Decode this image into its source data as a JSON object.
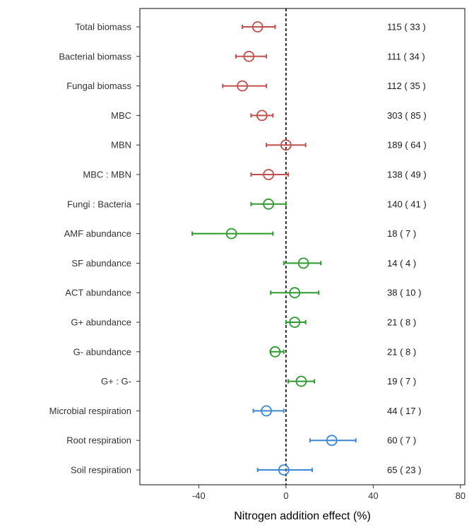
{
  "chart_data": {
    "type": "forest",
    "xlabel": "Nitrogen addition effect (%)",
    "xlim": [
      -67,
      82
    ],
    "xticks": [
      -40,
      0,
      40,
      80
    ],
    "reference_line": 0,
    "grid": false,
    "colors": {
      "red": "#c0504d",
      "green": "#2e9a2e",
      "blue": "#3c86d6"
    },
    "rows": [
      {
        "label": "Total biomass",
        "estimate": -13,
        "ci": [
          -20,
          -5
        ],
        "n_label": "115 ( 33 )",
        "color": "red"
      },
      {
        "label": "Bacterial biomass",
        "estimate": -17,
        "ci": [
          -23,
          -9
        ],
        "n_label": "111 ( 34 )",
        "color": "red"
      },
      {
        "label": "Fungal biomass",
        "estimate": -20,
        "ci": [
          -29,
          -9
        ],
        "n_label": "112 ( 35 )",
        "color": "red"
      },
      {
        "label": "MBC",
        "estimate": -11,
        "ci": [
          -16,
          -6
        ],
        "n_label": "303 ( 85 )",
        "color": "red"
      },
      {
        "label": "MBN",
        "estimate": 0,
        "ci": [
          -9,
          9
        ],
        "n_label": "189 ( 64 )",
        "color": "red"
      },
      {
        "label": "MBC : MBN",
        "estimate": -8,
        "ci": [
          -16,
          1
        ],
        "n_label": "138 ( 49 )",
        "color": "red"
      },
      {
        "label": "Fungi : Bacteria",
        "estimate": -8,
        "ci": [
          -16,
          0
        ],
        "n_label": "140 ( 41 )",
        "color": "green"
      },
      {
        "label": "AMF abundance",
        "estimate": -25,
        "ci": [
          -43,
          -6
        ],
        "n_label": "18 ( 7 )",
        "color": "green"
      },
      {
        "label": "SF abundance",
        "estimate": 8,
        "ci": [
          -1,
          16
        ],
        "n_label": "14 ( 4 )",
        "color": "green"
      },
      {
        "label": "ACT abundance",
        "estimate": 4,
        "ci": [
          -7,
          15
        ],
        "n_label": "38 ( 10 )",
        "color": "green"
      },
      {
        "label": "G+ abundance",
        "estimate": 4,
        "ci": [
          0,
          9
        ],
        "n_label": "21 ( 8 )",
        "color": "green"
      },
      {
        "label": "G- abundance",
        "estimate": -5,
        "ci": [
          -7,
          -1
        ],
        "n_label": "21 ( 8 )",
        "color": "green"
      },
      {
        "label": "G+ : G-",
        "estimate": 7,
        "ci": [
          1,
          13
        ],
        "n_label": "19 ( 7 )",
        "color": "green"
      },
      {
        "label": "Microbial respiration",
        "estimate": -9,
        "ci": [
          -15,
          -1
        ],
        "n_label": "44 ( 17 )",
        "color": "blue"
      },
      {
        "label": "Root respiration",
        "estimate": 21,
        "ci": [
          11,
          32
        ],
        "n_label": "60 ( 7 )",
        "color": "blue"
      },
      {
        "label": "Soil respiration",
        "estimate": -1,
        "ci": [
          -13,
          12
        ],
        "n_label": "65 ( 23 )",
        "color": "blue"
      }
    ]
  }
}
